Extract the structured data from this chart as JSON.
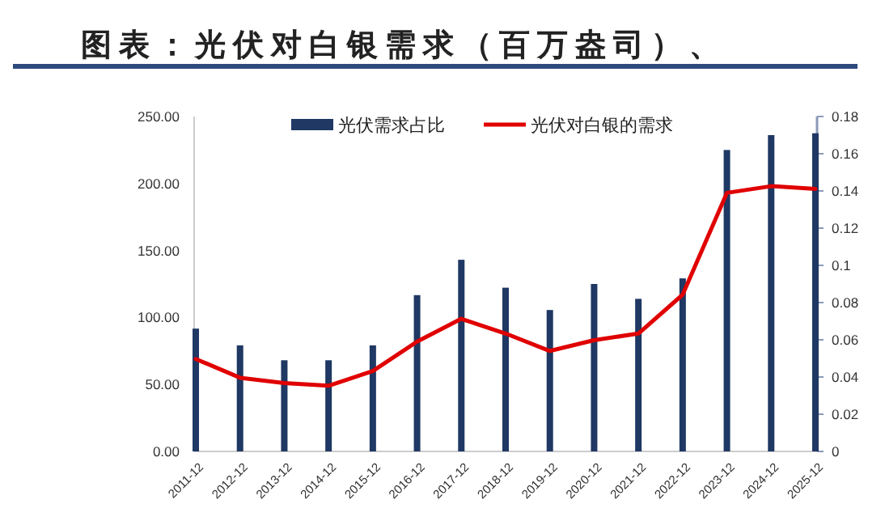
{
  "chart_data": {
    "type": "bar",
    "title": "图表：光伏对白银需求（百万盎司）、",
    "categories": [
      "2011-12",
      "2012-12",
      "2013-12",
      "2014-12",
      "2015-12",
      "2016-12",
      "2017-12",
      "2018-12",
      "2019-12",
      "2020-12",
      "2021-12",
      "2022-12",
      "2023-12",
      "2024-12",
      "2025-12"
    ],
    "series": [
      {
        "name": "光伏需求占比",
        "axis": "y2",
        "color": "#1f3864",
        "values": [
          0.066,
          0.057,
          0.049,
          0.049,
          0.057,
          0.084,
          0.103,
          0.088,
          0.076,
          0.09,
          0.082,
          0.093,
          0.162,
          0.17,
          0.171
        ]
      },
      {
        "name": "光伏对白银的需求",
        "type": "line",
        "color": "#e00000",
        "values": [
          69,
          55,
          51,
          49,
          60,
          82,
          99,
          88,
          75,
          83,
          88,
          117,
          193,
          198,
          196
        ]
      }
    ],
    "ylim": [
      0,
      250
    ],
    "yticks": [
      {
        "value": 0,
        "label": "0.00"
      },
      {
        "value": 50,
        "label": "50.00"
      },
      {
        "value": 100,
        "label": "100.00"
      },
      {
        "value": 150,
        "label": "150.00"
      },
      {
        "value": 200,
        "label": "200.00"
      },
      {
        "value": 250,
        "label": "250.00"
      }
    ],
    "y2lim": [
      0,
      0.18
    ],
    "y2ticks": [
      0,
      0.02,
      0.04,
      0.06,
      0.08,
      0.1,
      0.12,
      0.14,
      0.16,
      0.18
    ],
    "legend": "top",
    "grid": false
  }
}
